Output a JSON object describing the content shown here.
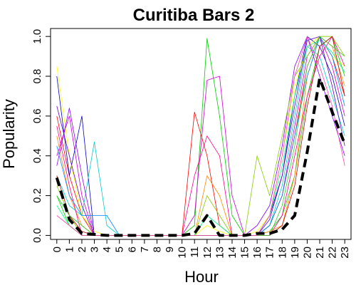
{
  "chart_data": {
    "type": "line",
    "title": "Curitiba Bars 2",
    "xlabel": "Hour",
    "ylabel": "Popularity",
    "x": [
      0,
      1,
      2,
      3,
      4,
      5,
      6,
      7,
      8,
      9,
      10,
      11,
      12,
      13,
      14,
      15,
      16,
      17,
      18,
      19,
      20,
      21,
      22,
      23
    ],
    "x_tick_labels": [
      "0",
      "1",
      "2",
      "3",
      "4",
      "5",
      "6",
      "7",
      "8",
      "9",
      "10",
      "11",
      "12",
      "13",
      "14",
      "15",
      "16",
      "17",
      "18",
      "19",
      "20",
      "21",
      "22",
      "23"
    ],
    "y_ticks": [
      0.0,
      0.2,
      0.4,
      0.6,
      0.8,
      1.0
    ],
    "y_tick_labels": [
      "0.0",
      "0.2",
      "0.4",
      "0.6",
      "0.8",
      "1.0"
    ],
    "xlim": [
      -0.5,
      23.5
    ],
    "ylim": [
      -0.02,
      1.04
    ],
    "grid": false,
    "legend": "none",
    "mean_series": {
      "style": "black-dashed-thick",
      "values": [
        0.29,
        0.08,
        0.01,
        0.005,
        0,
        0,
        0,
        0,
        0,
        0,
        0,
        0.01,
        0.1,
        0,
        0,
        0,
        0.01,
        0.01,
        0.03,
        0.1,
        0.42,
        0.79,
        0.62,
        0.46
      ]
    },
    "series": [
      {
        "color": "#ff0000",
        "values": [
          0.6,
          0.3,
          0.1,
          0.0,
          0.0,
          0.0,
          0.0,
          0.0,
          0.0,
          0.0,
          0.0,
          0.62,
          0.4,
          0.05,
          0.0,
          0.0,
          0.0,
          0.05,
          0.2,
          0.5,
          0.85,
          1.0,
          0.9,
          0.7
        ]
      },
      {
        "color": "#00cc00",
        "values": [
          0.2,
          0.05,
          0.0,
          0.0,
          0.0,
          0.0,
          0.0,
          0.0,
          0.0,
          0.0,
          0.0,
          0.05,
          0.99,
          0.6,
          0.1,
          0.0,
          0.0,
          0.02,
          0.1,
          0.3,
          0.7,
          0.95,
          1.0,
          0.8
        ]
      },
      {
        "color": "#cc00cc",
        "values": [
          0.4,
          0.6,
          0.2,
          0.0,
          0.0,
          0.0,
          0.0,
          0.0,
          0.0,
          0.0,
          0.0,
          0.1,
          0.78,
          0.8,
          0.2,
          0.0,
          0.0,
          0.05,
          0.2,
          0.55,
          0.9,
          1.0,
          0.85,
          0.6
        ]
      },
      {
        "color": "#0000cc",
        "values": [
          0.8,
          0.3,
          0.6,
          0.0,
          0.0,
          0.0,
          0.0,
          0.0,
          0.0,
          0.0,
          0.0,
          0.0,
          0.0,
          0.0,
          0.0,
          0.0,
          0.0,
          0.1,
          0.3,
          0.7,
          1.0,
          0.95,
          0.8,
          0.55
        ]
      },
      {
        "color": "#ffff00",
        "values": [
          0.85,
          0.4,
          0.1,
          0.02,
          0.0,
          0.0,
          0.0,
          0.0,
          0.0,
          0.0,
          0.0,
          0.0,
          0.05,
          0.02,
          0.0,
          0.0,
          0.02,
          0.1,
          0.4,
          0.75,
          0.95,
          1.0,
          0.9,
          0.85
        ]
      },
      {
        "color": "#00cccc",
        "values": [
          0.3,
          0.15,
          0.1,
          0.47,
          0.05,
          0.0,
          0.0,
          0.0,
          0.0,
          0.0,
          0.0,
          0.0,
          0.0,
          0.0,
          0.0,
          0.0,
          0.0,
          0.05,
          0.25,
          0.6,
          0.95,
          0.9,
          0.7,
          0.5
        ]
      },
      {
        "color": "#ff8800",
        "values": [
          0.5,
          0.2,
          0.05,
          0.0,
          0.0,
          0.0,
          0.0,
          0.0,
          0.0,
          0.0,
          0.0,
          0.0,
          0.3,
          0.2,
          0.0,
          0.0,
          0.0,
          0.02,
          0.05,
          0.3,
          0.8,
          1.0,
          0.95,
          0.75
        ]
      },
      {
        "color": "#8800ff",
        "values": [
          0.35,
          0.64,
          0.3,
          0.0,
          0.0,
          0.0,
          0.0,
          0.0,
          0.0,
          0.0,
          0.0,
          0.0,
          0.0,
          0.0,
          0.0,
          0.0,
          0.05,
          0.15,
          0.45,
          0.85,
          1.0,
          0.8,
          0.6,
          0.4
        ]
      },
      {
        "color": "#88cc00",
        "values": [
          0.25,
          0.1,
          0.0,
          0.0,
          0.0,
          0.0,
          0.0,
          0.0,
          0.0,
          0.0,
          0.0,
          0.0,
          0.2,
          0.1,
          0.0,
          0.0,
          0.4,
          0.2,
          0.5,
          0.8,
          0.9,
          1.0,
          1.0,
          0.9
        ]
      },
      {
        "color": "#ff0088",
        "values": [
          0.55,
          0.25,
          0.0,
          0.0,
          0.0,
          0.0,
          0.0,
          0.0,
          0.0,
          0.0,
          0.0,
          0.3,
          0.5,
          0.4,
          0.0,
          0.0,
          0.0,
          0.0,
          0.1,
          0.4,
          0.7,
          0.9,
          1.0,
          0.85
        ]
      },
      {
        "color": "#0088ff",
        "values": [
          0.45,
          0.2,
          0.1,
          0.1,
          0.1,
          0.0,
          0.0,
          0.0,
          0.0,
          0.0,
          0.0,
          0.0,
          0.0,
          0.0,
          0.0,
          0.0,
          0.0,
          0.05,
          0.2,
          0.5,
          0.8,
          1.0,
          0.9,
          0.65
        ]
      },
      {
        "color": "#00ff88",
        "values": [
          0.15,
          0.05,
          0.0,
          0.0,
          0.0,
          0.0,
          0.0,
          0.0,
          0.0,
          0.0,
          0.0,
          0.0,
          0.1,
          0.05,
          0.0,
          0.0,
          0.0,
          0.1,
          0.35,
          0.7,
          0.95,
          0.98,
          0.92,
          0.82
        ]
      },
      {
        "color": "#cc0000",
        "values": [
          0.3,
          0.1,
          0.02,
          0.0,
          0.0,
          0.0,
          0.0,
          0.0,
          0.0,
          0.0,
          0.0,
          0.0,
          0.0,
          0.0,
          0.0,
          0.0,
          0.0,
          0.0,
          0.05,
          0.25,
          0.65,
          0.95,
          1.0,
          0.7
        ]
      },
      {
        "color": "#6600cc",
        "values": [
          0.65,
          0.4,
          0.15,
          0.0,
          0.0,
          0.0,
          0.0,
          0.0,
          0.0,
          0.0,
          0.0,
          0.0,
          0.0,
          0.0,
          0.0,
          0.0,
          0.0,
          0.08,
          0.3,
          0.65,
          0.98,
          1.0,
          0.75,
          0.45
        ]
      },
      {
        "color": "#33cc33",
        "values": [
          0.2,
          0.1,
          0.05,
          0.0,
          0.0,
          0.0,
          0.0,
          0.0,
          0.0,
          0.0,
          0.0,
          0.0,
          0.0,
          0.0,
          0.0,
          0.0,
          0.0,
          0.0,
          0.15,
          0.45,
          0.85,
          1.0,
          0.95,
          0.9
        ]
      },
      {
        "color": "#ff44aa",
        "values": [
          0.1,
          0.05,
          0.0,
          0.0,
          0.0,
          0.0,
          0.0,
          0.0,
          0.0,
          0.0,
          0.0,
          0.0,
          0.0,
          0.0,
          0.0,
          0.0,
          0.0,
          0.1,
          0.4,
          0.8,
          1.0,
          0.85,
          0.65,
          0.35
        ]
      }
    ]
  }
}
